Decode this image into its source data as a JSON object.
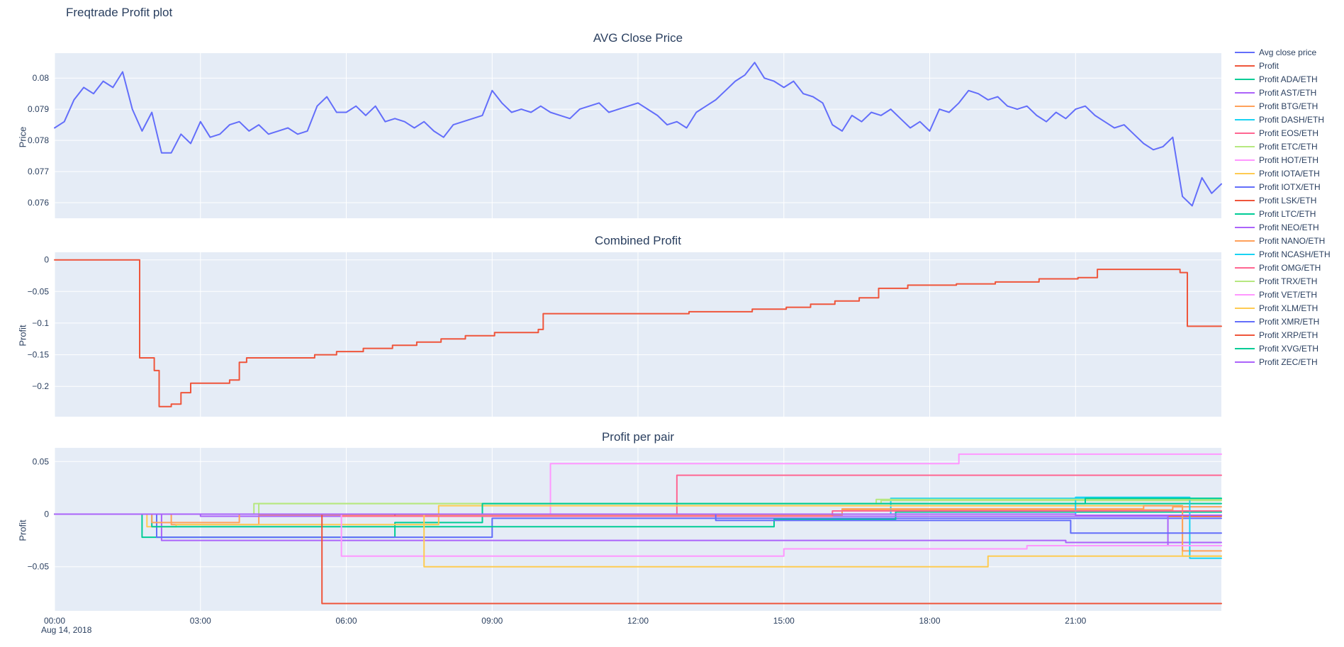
{
  "page_title": "Freqtrade Profit plot",
  "date_label": "Aug 14, 2018",
  "colors": {
    "plot_bg": "#e5ecf6",
    "grid": "#ffffff",
    "text": "#2a3f5f",
    "palette": [
      "#636efa",
      "#EF553B",
      "#00cc96",
      "#ab63fa",
      "#FFA15A",
      "#19d3f3",
      "#FF6692",
      "#B6E880",
      "#FF97FF",
      "#FECB52"
    ]
  },
  "x_axis": {
    "tick_hours": [
      0,
      3,
      6,
      9,
      12,
      15,
      18,
      21
    ],
    "tick_labels": [
      "00:00",
      "03:00",
      "06:00",
      "09:00",
      "12:00",
      "15:00",
      "18:00",
      "21:00"
    ],
    "range_hours": [
      0,
      24
    ]
  },
  "legend": [
    {
      "label": "Avg close price",
      "color": "#636efa"
    },
    {
      "label": "Profit",
      "color": "#EF553B"
    },
    {
      "label": "Profit ADA/ETH",
      "color": "#00cc96"
    },
    {
      "label": "Profit AST/ETH",
      "color": "#ab63fa"
    },
    {
      "label": "Profit BTG/ETH",
      "color": "#FFA15A"
    },
    {
      "label": "Profit DASH/ETH",
      "color": "#19d3f3"
    },
    {
      "label": "Profit EOS/ETH",
      "color": "#FF6692"
    },
    {
      "label": "Profit ETC/ETH",
      "color": "#B6E880"
    },
    {
      "label": "Profit HOT/ETH",
      "color": "#FF97FF"
    },
    {
      "label": "Profit IOTA/ETH",
      "color": "#FECB52"
    },
    {
      "label": "Profit IOTX/ETH",
      "color": "#636efa"
    },
    {
      "label": "Profit LSK/ETH",
      "color": "#EF553B"
    },
    {
      "label": "Profit LTC/ETH",
      "color": "#00cc96"
    },
    {
      "label": "Profit NEO/ETH",
      "color": "#ab63fa"
    },
    {
      "label": "Profit NANO/ETH",
      "color": "#FFA15A"
    },
    {
      "label": "Profit NCASH/ETH",
      "color": "#19d3f3"
    },
    {
      "label": "Profit OMG/ETH",
      "color": "#FF6692"
    },
    {
      "label": "Profit TRX/ETH",
      "color": "#B6E880"
    },
    {
      "label": "Profit VET/ETH",
      "color": "#FF97FF"
    },
    {
      "label": "Profit XLM/ETH",
      "color": "#FECB52"
    },
    {
      "label": "Profit XMR/ETH",
      "color": "#636efa"
    },
    {
      "label": "Profit XRP/ETH",
      "color": "#EF553B"
    },
    {
      "label": "Profit XVG/ETH",
      "color": "#00cc96"
    },
    {
      "label": "Profit ZEC/ETH",
      "color": "#ab63fa"
    }
  ],
  "chart_data": [
    {
      "type": "line",
      "title": "AVG Close Price",
      "ylabel": "Price",
      "xlim": [
        0,
        24
      ],
      "ylim": [
        0.0755,
        0.0808
      ],
      "yticks": [
        0.076,
        0.077,
        0.078,
        0.079,
        0.08
      ],
      "ytick_labels": [
        "0.076",
        "0.077",
        "0.078",
        "0.079",
        "0.08"
      ],
      "series": [
        {
          "name": "Avg close price",
          "color": "#636efa",
          "mode": "line",
          "y": [
            0.0784,
            0.0786,
            0.0793,
            0.0797,
            0.0795,
            0.0799,
            0.0797,
            0.0802,
            0.079,
            0.0783,
            0.0789,
            0.0776,
            0.0776,
            0.0782,
            0.0779,
            0.0786,
            0.0781,
            0.0782,
            0.0785,
            0.0786,
            0.0783,
            0.0785,
            0.0782,
            0.0783,
            0.0784,
            0.0782,
            0.0783,
            0.0791,
            0.0794,
            0.0789,
            0.0789,
            0.0791,
            0.0788,
            0.0791,
            0.0786,
            0.0787,
            0.0786,
            0.0784,
            0.0786,
            0.0783,
            0.0781,
            0.0785,
            0.0786,
            0.0787,
            0.0788,
            0.0796,
            0.0792,
            0.0789,
            0.079,
            0.0789,
            0.0791,
            0.0789,
            0.0788,
            0.0787,
            0.079,
            0.0791,
            0.0792,
            0.0789,
            0.079,
            0.0791,
            0.0792,
            0.079,
            0.0788,
            0.0785,
            0.0786,
            0.0784,
            0.0789,
            0.0791,
            0.0793,
            0.0796,
            0.0799,
            0.0801,
            0.0805,
            0.08,
            0.0799,
            0.0797,
            0.0799,
            0.0795,
            0.0794,
            0.0792,
            0.0785,
            0.0783,
            0.0788,
            0.0786,
            0.0789,
            0.0788,
            0.079,
            0.0787,
            0.0784,
            0.0786,
            0.0783,
            0.079,
            0.0789,
            0.0792,
            0.0796,
            0.0795,
            0.0793,
            0.0794,
            0.0791,
            0.079,
            0.0791,
            0.0788,
            0.0786,
            0.0789,
            0.0787,
            0.079,
            0.0791,
            0.0788,
            0.0786,
            0.0784,
            0.0785,
            0.0782,
            0.0779,
            0.0777,
            0.0778,
            0.0781,
            0.0762,
            0.0759,
            0.0768,
            0.0763,
            0.0766
          ]
        }
      ]
    },
    {
      "type": "line",
      "title": "Combined Profit",
      "ylabel": "Profit",
      "xlim": [
        0,
        24
      ],
      "ylim": [
        -0.248,
        0.012
      ],
      "yticks": [
        0,
        -0.05,
        -0.1,
        -0.15,
        -0.2
      ],
      "ytick_labels": [
        "0",
        "−0.05",
        "−0.1",
        "−0.15",
        "−0.2"
      ],
      "series": [
        {
          "name": "Profit",
          "color": "#EF553B",
          "mode": "step",
          "points": [
            [
              0,
              0
            ],
            [
              1.75,
              -0.155
            ],
            [
              2.05,
              -0.175
            ],
            [
              2.15,
              -0.232
            ],
            [
              2.4,
              -0.228
            ],
            [
              2.6,
              -0.21
            ],
            [
              2.8,
              -0.195
            ],
            [
              3.6,
              -0.19
            ],
            [
              3.8,
              -0.162
            ],
            [
              3.95,
              -0.155
            ],
            [
              5.35,
              -0.15
            ],
            [
              5.8,
              -0.145
            ],
            [
              6.35,
              -0.14
            ],
            [
              6.95,
              -0.135
            ],
            [
              7.45,
              -0.13
            ],
            [
              7.95,
              -0.125
            ],
            [
              8.45,
              -0.12
            ],
            [
              9.05,
              -0.115
            ],
            [
              9.95,
              -0.11
            ],
            [
              10.05,
              -0.085
            ],
            [
              13.05,
              -0.082
            ],
            [
              14.35,
              -0.078
            ],
            [
              15.05,
              -0.075
            ],
            [
              15.55,
              -0.07
            ],
            [
              16.05,
              -0.065
            ],
            [
              16.55,
              -0.06
            ],
            [
              16.95,
              -0.045
            ],
            [
              17.55,
              -0.04
            ],
            [
              18.55,
              -0.038
            ],
            [
              19.35,
              -0.035
            ],
            [
              20.25,
              -0.03
            ],
            [
              21.05,
              -0.028
            ],
            [
              21.45,
              -0.015
            ],
            [
              23.15,
              -0.02
            ],
            [
              23.3,
              -0.105
            ],
            [
              24,
              -0.105
            ]
          ]
        }
      ]
    },
    {
      "type": "line",
      "title": "Profit per pair",
      "ylabel": "Profit",
      "xlim": [
        0,
        24
      ],
      "ylim": [
        -0.092,
        0.063
      ],
      "yticks": [
        0.05,
        0,
        -0.05
      ],
      "ytick_labels": [
        "0.05",
        "0",
        "−0.05"
      ],
      "series": [
        {
          "name": "Profit ADA/ETH",
          "color": "#00cc96",
          "mode": "step",
          "points": [
            [
              0,
              0
            ],
            [
              1.8,
              -0.022
            ],
            [
              7.0,
              -0.008
            ],
            [
              8.8,
              0.01
            ],
            [
              24,
              0.01
            ]
          ]
        },
        {
          "name": "Profit AST/ETH",
          "color": "#ab63fa",
          "mode": "step",
          "points": [
            [
              0,
              0
            ],
            [
              2.2,
              -0.025
            ],
            [
              20.8,
              -0.027
            ],
            [
              24,
              -0.027
            ]
          ]
        },
        {
          "name": "Profit BTG/ETH",
          "color": "#FFA15A",
          "mode": "step",
          "points": [
            [
              0,
              0
            ],
            [
              2.4,
              -0.01
            ],
            [
              4.2,
              -0.001
            ],
            [
              16.2,
              0.004
            ],
            [
              23.0,
              0.007
            ],
            [
              24,
              0.007
            ]
          ]
        },
        {
          "name": "Profit DASH/ETH",
          "color": "#19d3f3",
          "mode": "step",
          "points": [
            [
              0,
              0
            ],
            [
              17.2,
              0.015
            ],
            [
              24,
              0.015
            ]
          ]
        },
        {
          "name": "Profit EOS/ETH",
          "color": "#FF6692",
          "mode": "step",
          "points": [
            [
              0,
              0
            ],
            [
              12.8,
              0.037
            ],
            [
              24,
              0.037
            ]
          ]
        },
        {
          "name": "Profit ETC/ETH",
          "color": "#B6E880",
          "mode": "step",
          "points": [
            [
              0,
              0
            ],
            [
              4.1,
              0.01
            ],
            [
              17.0,
              0.013
            ],
            [
              24,
              0.013
            ]
          ]
        },
        {
          "name": "Profit HOT/ETH",
          "color": "#FF97FF",
          "mode": "step",
          "points": [
            [
              0,
              0
            ],
            [
              10.2,
              0.048
            ],
            [
              18.6,
              0.057
            ],
            [
              24,
              0.057
            ]
          ]
        },
        {
          "name": "Profit IOTA/ETH",
          "color": "#FECB52",
          "mode": "step",
          "points": [
            [
              0,
              0
            ],
            [
              1.9,
              -0.012
            ],
            [
              2.5,
              -0.01
            ],
            [
              7.9,
              0.008
            ],
            [
              23.2,
              -0.04
            ],
            [
              24,
              -0.04
            ]
          ]
        },
        {
          "name": "Profit IOTX/ETH",
          "color": "#636efa",
          "mode": "step",
          "points": [
            [
              0,
              0
            ],
            [
              2.1,
              -0.022
            ],
            [
              9.0,
              -0.004
            ],
            [
              24,
              -0.004
            ]
          ]
        },
        {
          "name": "Profit LSK/ETH",
          "color": "#EF553B",
          "mode": "step",
          "points": [
            [
              0,
              0
            ],
            [
              7.0,
              -0.002
            ],
            [
              24,
              -0.002
            ]
          ]
        },
        {
          "name": "Profit LTC/ETH",
          "color": "#00cc96",
          "mode": "step",
          "points": [
            [
              0,
              0
            ],
            [
              2.0,
              -0.012
            ],
            [
              14.8,
              -0.005
            ],
            [
              17.3,
              0.002
            ],
            [
              24,
              0.002
            ]
          ]
        },
        {
          "name": "Profit NEO/ETH",
          "color": "#ab63fa",
          "mode": "step",
          "points": [
            [
              0,
              0
            ],
            [
              3.0,
              -0.002
            ],
            [
              22.9,
              -0.03
            ],
            [
              24,
              -0.03
            ]
          ]
        },
        {
          "name": "Profit NANO/ETH",
          "color": "#FFA15A",
          "mode": "step",
          "points": [
            [
              0,
              0
            ],
            [
              2.0,
              -0.008
            ],
            [
              3.8,
              0.0
            ],
            [
              16.2,
              0.005
            ],
            [
              22.4,
              0.008
            ],
            [
              23.2,
              -0.035
            ],
            [
              24,
              -0.035
            ]
          ]
        },
        {
          "name": "Profit NCASH/ETH",
          "color": "#19d3f3",
          "mode": "step",
          "points": [
            [
              0,
              0
            ],
            [
              21.0,
              0.016
            ],
            [
              23.35,
              -0.042
            ],
            [
              24,
              -0.042
            ]
          ]
        },
        {
          "name": "Profit OMG/ETH",
          "color": "#FF6692",
          "mode": "step",
          "points": [
            [
              0,
              0
            ],
            [
              5.9,
              -0.002
            ],
            [
              16.0,
              0.003
            ],
            [
              24,
              0.003
            ]
          ]
        },
        {
          "name": "Profit TRX/ETH",
          "color": "#B6E880",
          "mode": "step",
          "points": [
            [
              0,
              0
            ],
            [
              4.2,
              0.01
            ],
            [
              16.9,
              0.014
            ],
            [
              24,
              0.014
            ]
          ]
        },
        {
          "name": "Profit VET/ETH",
          "color": "#FF97FF",
          "mode": "step",
          "points": [
            [
              0,
              0
            ],
            [
              5.9,
              -0.04
            ],
            [
              15.0,
              -0.033
            ],
            [
              20.0,
              -0.03
            ],
            [
              24,
              -0.03
            ]
          ]
        },
        {
          "name": "Profit XLM/ETH",
          "color": "#FECB52",
          "mode": "step",
          "points": [
            [
              0,
              0
            ],
            [
              7.6,
              -0.05
            ],
            [
              19.2,
              -0.04
            ],
            [
              24,
              -0.04
            ]
          ]
        },
        {
          "name": "Profit XMR/ETH",
          "color": "#636efa",
          "mode": "step",
          "points": [
            [
              0,
              0
            ],
            [
              13.6,
              -0.006
            ],
            [
              20.9,
              -0.018
            ],
            [
              24,
              -0.018
            ]
          ]
        },
        {
          "name": "Profit XRP/ETH",
          "color": "#EF553B",
          "mode": "step",
          "points": [
            [
              0,
              0
            ],
            [
              5.5,
              -0.085
            ],
            [
              24,
              -0.085
            ]
          ]
        },
        {
          "name": "Profit XVG/ETH",
          "color": "#00cc96",
          "mode": "step",
          "points": [
            [
              0,
              0
            ],
            [
              8.8,
              0.01
            ],
            [
              21.2,
              0.015
            ],
            [
              24,
              0.015
            ]
          ]
        },
        {
          "name": "Profit ZEC/ETH",
          "color": "#ab63fa",
          "mode": "step",
          "points": [
            [
              0,
              0
            ],
            [
              21.0,
              -0.001
            ],
            [
              24,
              -0.001
            ]
          ]
        }
      ]
    }
  ]
}
